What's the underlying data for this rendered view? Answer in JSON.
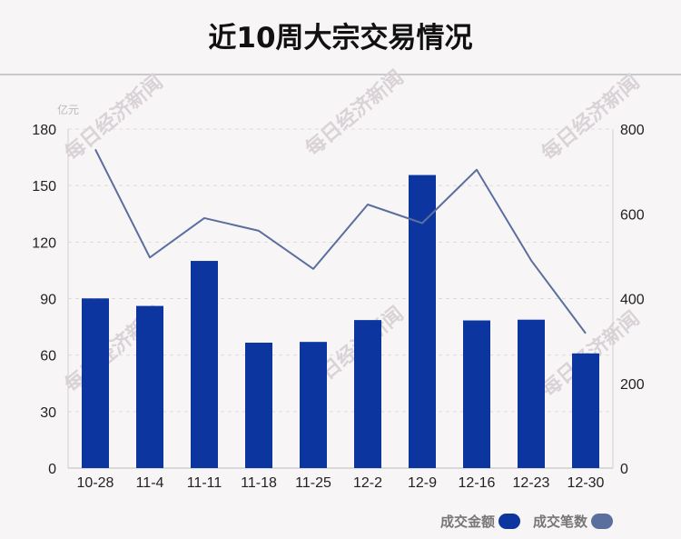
{
  "title": "近10周大宗交易情况",
  "watermark": "每日经济新闻",
  "colors": {
    "bar": "#0c35a0",
    "line": "#5a6f9e",
    "background": "#f8f5f7"
  },
  "legend": [
    {
      "label": "成交金额",
      "color": "#0c35a0"
    },
    {
      "label": "成交笔数",
      "color": "#5a6f9e"
    }
  ],
  "chart_data": {
    "type": "bar",
    "categories": [
      "10-28",
      "11-4",
      "11-11",
      "11-18",
      "11-25",
      "12-2",
      "12-9",
      "12-16",
      "12-23",
      "12-30"
    ],
    "series": [
      {
        "name": "成交金额",
        "type": "bar",
        "axis": "left",
        "values": [
          90.1,
          86.1,
          110.0,
          66.6,
          67.0,
          78.6,
          155.6,
          78.4,
          78.8,
          60.9
        ]
      },
      {
        "name": "成交笔数",
        "type": "line",
        "axis": "right",
        "values": [
          752,
          497,
          590,
          560,
          470,
          622,
          578,
          704,
          490,
          318
        ]
      }
    ],
    "y_left": {
      "unit": "亿元",
      "min": 0,
      "max": 180,
      "ticks": [
        0,
        30,
        60,
        90,
        120,
        150,
        180
      ]
    },
    "y_right": {
      "min": 0,
      "max": 800,
      "ticks": [
        0,
        200,
        400,
        600,
        800
      ]
    },
    "grid": true,
    "legend_position": "bottom-right"
  }
}
